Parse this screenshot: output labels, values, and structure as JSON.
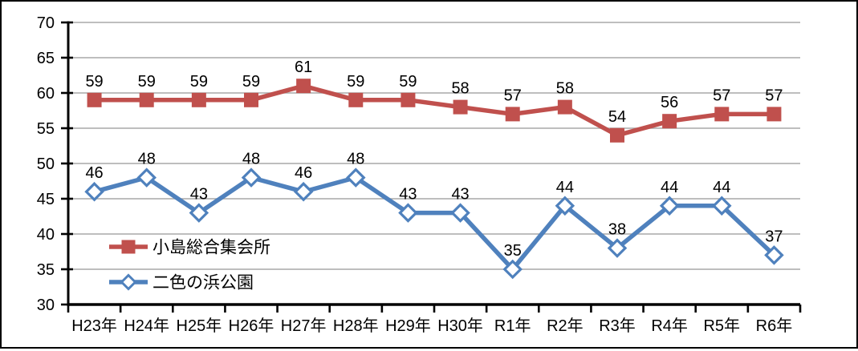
{
  "chart_data": {
    "type": "line",
    "title": "",
    "categories": [
      "H23年",
      "H24年",
      "H25年",
      "H26年",
      "H27年",
      "H28年",
      "H29年",
      "H30年",
      "R1年",
      "R2年",
      "R3年",
      "R4年",
      "R5年",
      "R6年"
    ],
    "series": [
      {
        "name": "小島総合集会所",
        "values": [
          59,
          59,
          59,
          59,
          61,
          59,
          59,
          58,
          57,
          58,
          54,
          56,
          57,
          57
        ],
        "color": "#C0504D",
        "marker": "square",
        "marker_fill": "#C0504D"
      },
      {
        "name": "二色の浜公園",
        "values": [
          46,
          48,
          43,
          48,
          46,
          48,
          43,
          43,
          35,
          44,
          38,
          44,
          44,
          37
        ],
        "color": "#4F81BD",
        "marker": "diamond",
        "marker_fill": "#FFFFFF"
      }
    ],
    "ylim": [
      30,
      70
    ],
    "yticks": [
      30,
      35,
      40,
      45,
      50,
      55,
      60,
      65,
      70
    ],
    "grid": true,
    "grid_color": "#A8A8A8",
    "axis_color": "#000000",
    "label_color": "#000000",
    "data_labels": true,
    "legend_position": "inside-left",
    "background": "#FFFFFF",
    "border_color": "#000000"
  }
}
